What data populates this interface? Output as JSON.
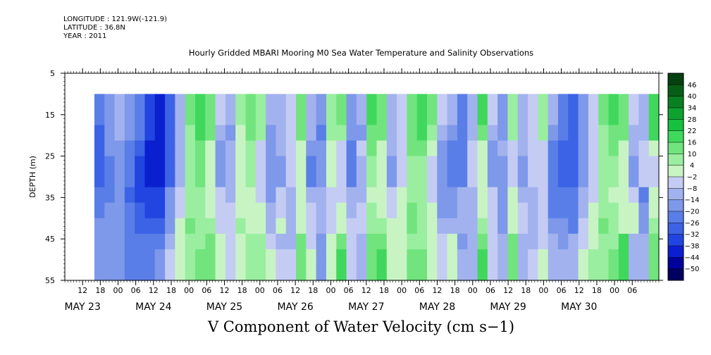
{
  "header": {
    "longitude": "LONGITUDE : 121.9W(-121.9)",
    "latitude": "LATITUDE : 36.8N",
    "year": "YEAR : 2011"
  },
  "chart_data": {
    "type": "heatmap",
    "title": "Hourly Gridded MBARI Mooring M0 Sea Water Temperature and Salinity Observations",
    "xlabel": "V Component of Water Velocity (cm s−1)",
    "ylabel": "DEPTH (m)",
    "ylim": [
      55,
      5
    ],
    "yticks": [
      5,
      15,
      25,
      35,
      45,
      55
    ],
    "xlim_hours": [
      0,
      201
    ],
    "x_hour_ticks": [
      "12",
      "18",
      "00",
      "06",
      "12",
      "18",
      "00",
      "06",
      "12",
      "18",
      "00",
      "06",
      "12",
      "18",
      "00",
      "06",
      "12",
      "18",
      "00",
      "06",
      "12",
      "18",
      "00",
      "06",
      "12",
      "18",
      "00",
      "06",
      "12",
      "18",
      "00",
      "06"
    ],
    "x_day_labels": [
      "MAY 23",
      "MAY 24",
      "MAY 25",
      "MAY 26",
      "MAY 27",
      "MAY 28",
      "MAY 29",
      "MAY 30"
    ],
    "data_start_hour": 10,
    "data_end_hour": 201,
    "data_top_depth": 10,
    "colorbar": {
      "levels": [
        -50,
        -44,
        -38,
        -32,
        -26,
        -20,
        -14,
        -8,
        -2,
        4,
        10,
        16,
        22,
        28,
        34,
        40,
        46
      ],
      "labels": [
        "46",
        "40",
        "34",
        "28",
        "22",
        "16",
        "10",
        "4",
        "−2",
        "−8",
        "−14",
        "−20",
        "−26",
        "−32",
        "−38",
        "−44",
        "−50"
      ],
      "colors": [
        "#000060",
        "#00009a",
        "#0a1fd0",
        "#2244e0",
        "#3c62e6",
        "#5a7ee8",
        "#7e98ea",
        "#a2b2ee",
        "#c4ccf4",
        "#c8f4c4",
        "#9aeea0",
        "#72e47e",
        "#40d85c",
        "#18c040",
        "#0fa230",
        "#0a8022",
        "#075e18",
        "#044010"
      ]
    },
    "column_profile_v": [
      -25,
      -18,
      -10,
      -16,
      -22,
      -34,
      -40,
      -28,
      -12,
      10,
      18,
      14,
      -8,
      -14,
      4,
      12,
      8,
      -14,
      -10,
      -6,
      14,
      -12,
      -20,
      6,
      10,
      -18,
      -14,
      16,
      12,
      -10,
      -6,
      14,
      18,
      10,
      -8,
      -14,
      -22,
      -10,
      16,
      -8,
      -18,
      8,
      -12,
      -6,
      8,
      -14,
      -22,
      -28,
      -16,
      -6,
      10,
      16,
      12,
      -8,
      -12,
      18
    ],
    "depth_trend": [
      0,
      0,
      -2,
      -4,
      -6,
      -6,
      -4,
      -2,
      0,
      2,
      4,
      4
    ]
  },
  "colors": {
    "plot_border": "#000000",
    "missing": "#ffffff"
  }
}
